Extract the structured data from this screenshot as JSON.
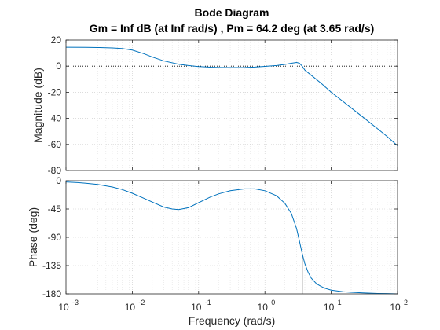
{
  "chart_data": [
    {
      "type": "line",
      "panel": "magnitude",
      "title": "Bode Diagram",
      "subtitle": "Gm = Inf dB (at Inf rad/s) ,  Pm = 64.2 deg (at 3.65 rad/s)",
      "ylabel": "Magnitude (dB)",
      "xscale": "log",
      "xlim": [
        0.001,
        100
      ],
      "ylim": [
        -80,
        20
      ],
      "yticks": [
        20,
        0,
        -20,
        -40,
        -60,
        -80
      ],
      "ytick_labels": [
        "20",
        "0",
        "-20",
        "-40",
        "-60",
        "-80"
      ],
      "grid": true,
      "zero_line": 0,
      "marker_x": 3.65,
      "series": [
        {
          "color": "#0072BD",
          "x": [
            0.001,
            0.002,
            0.003,
            0.005,
            0.007,
            0.01,
            0.015,
            0.02,
            0.03,
            0.05,
            0.07,
            0.1,
            0.15,
            0.2,
            0.3,
            0.5,
            0.7,
            1,
            1.5,
            2,
            2.5,
            3,
            3.3,
            3.65,
            4,
            5,
            7,
            10,
            15,
            20,
            30,
            50,
            70,
            100
          ],
          "values": [
            14.5,
            14.4,
            14.3,
            14.0,
            13.5,
            12.3,
            9.5,
            7,
            4,
            1.5,
            0.5,
            -0.3,
            -0.8,
            -1.0,
            -1.1,
            -1.0,
            -0.7,
            -0.2,
            0.5,
            1.3,
            2.2,
            2.8,
            2.3,
            0,
            -3,
            -7,
            -13,
            -20,
            -27,
            -32,
            -39,
            -48,
            -54,
            -61
          ]
        }
      ]
    },
    {
      "type": "line",
      "panel": "phase",
      "xlabel": "Frequency  (rad/s)",
      "ylabel": "Phase (deg)",
      "xscale": "log",
      "xlim": [
        0.001,
        100
      ],
      "ylim": [
        -180,
        0
      ],
      "yticks": [
        0,
        -45,
        -90,
        -135,
        -180
      ],
      "ytick_labels": [
        "0",
        "-45",
        "-90",
        "-135",
        "-180"
      ],
      "xticks": [
        0.001,
        0.01,
        0.1,
        1,
        10,
        100
      ],
      "xtick_labels": [
        {
          "base": "10",
          "exp": "-3"
        },
        {
          "base": "10",
          "exp": "-2"
        },
        {
          "base": "10",
          "exp": "-1"
        },
        {
          "base": "10",
          "exp": "0"
        },
        {
          "base": "10",
          "exp": "1"
        },
        {
          "base": "10",
          "exp": "2"
        }
      ],
      "grid": true,
      "marker_x": 3.65,
      "marker_y": -115.8,
      "series": [
        {
          "color": "#0072BD",
          "x": [
            0.001,
            0.0015,
            0.002,
            0.003,
            0.005,
            0.007,
            0.01,
            0.015,
            0.02,
            0.03,
            0.04,
            0.05,
            0.07,
            0.1,
            0.15,
            0.2,
            0.3,
            0.5,
            0.7,
            1,
            1.5,
            2,
            2.5,
            3,
            3.3,
            3.65,
            4,
            4.5,
            5,
            6,
            7,
            8,
            10,
            15,
            20,
            30,
            50,
            70,
            100
          ],
          "values": [
            -2,
            -3,
            -4,
            -6,
            -10,
            -14,
            -20,
            -28,
            -34,
            -42,
            -45,
            -46,
            -43,
            -35,
            -26,
            -21,
            -16,
            -13,
            -13,
            -16,
            -24,
            -36,
            -52,
            -76,
            -95,
            -116,
            -132,
            -146,
            -155,
            -164,
            -168,
            -171,
            -174,
            -176.5,
            -177.5,
            -178.5,
            -179.3,
            -179.6,
            -180
          ]
        }
      ]
    }
  ]
}
